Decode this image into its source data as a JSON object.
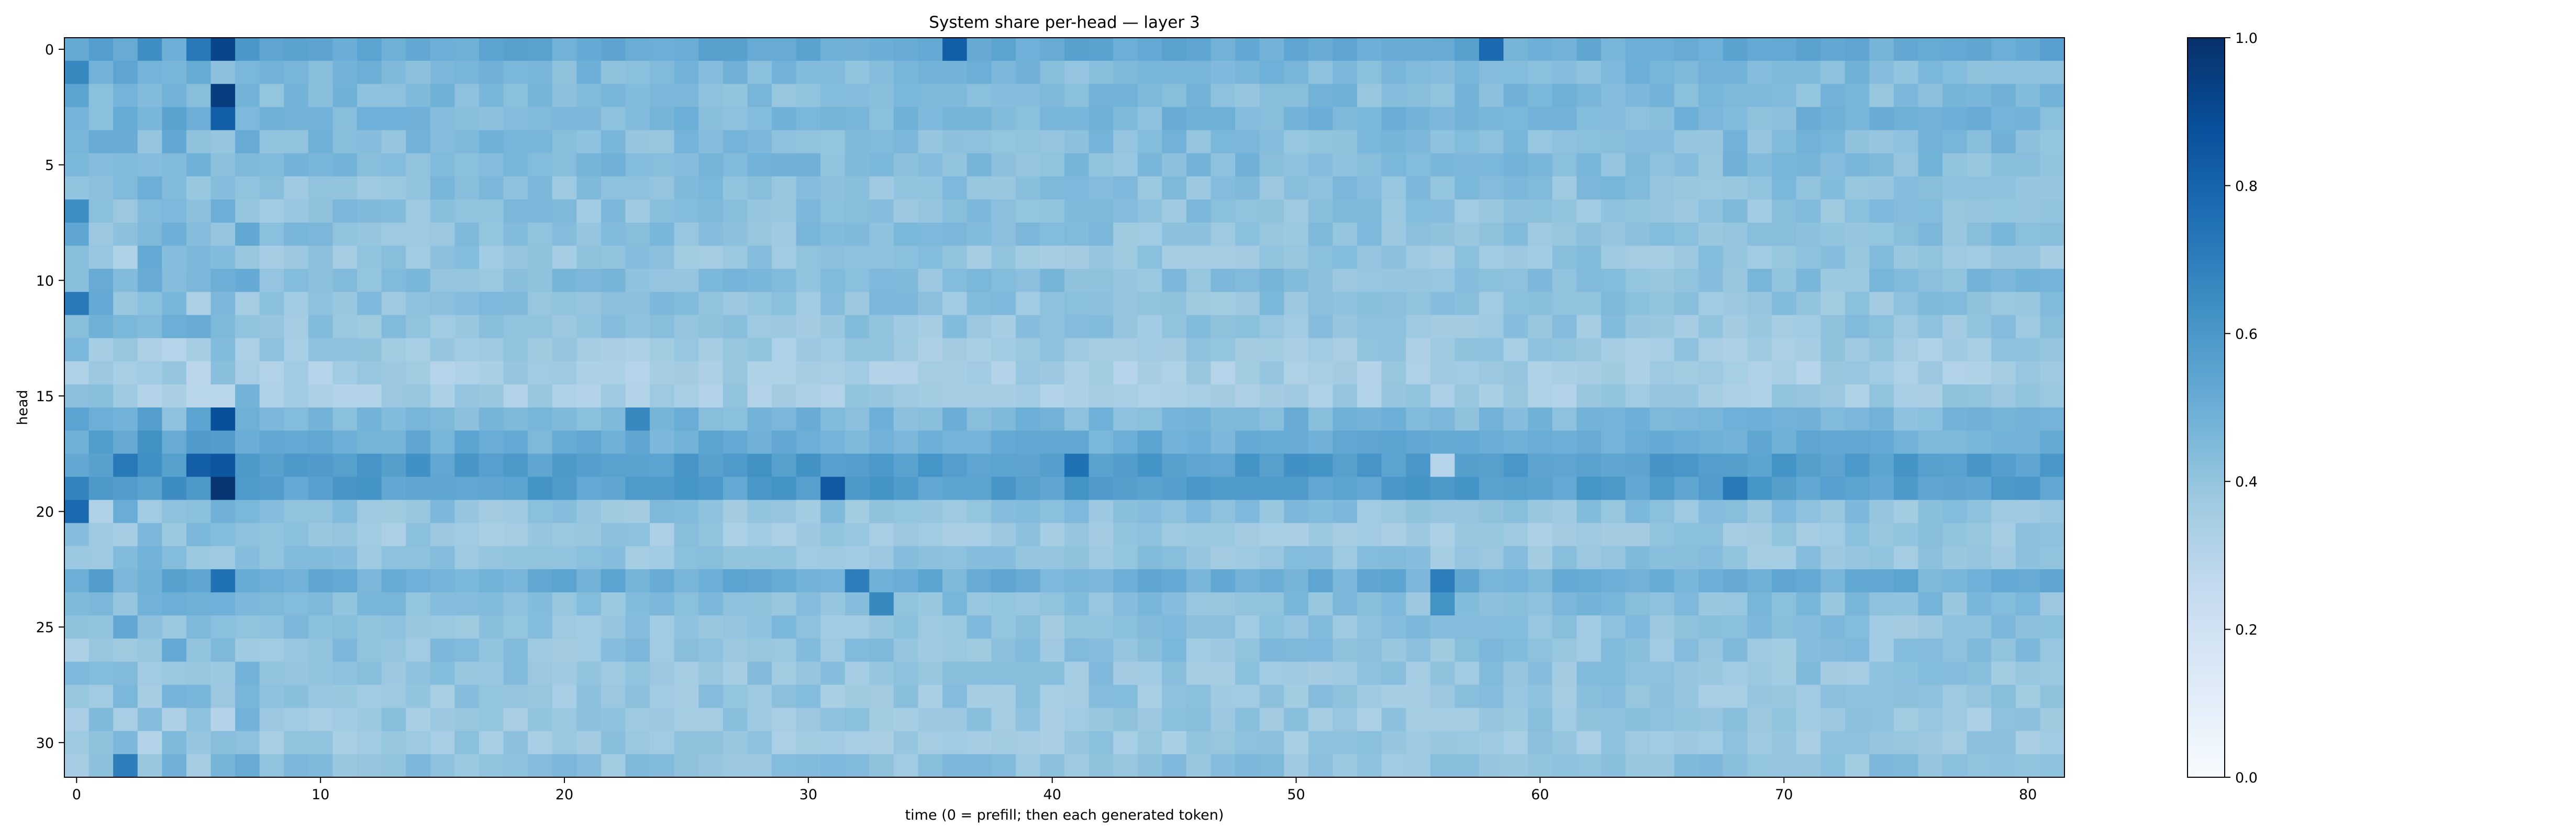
{
  "chart_data": {
    "type": "heatmap",
    "title": "System share per-head — layer 3",
    "xlabel": "time (0 = prefill; then each generated token)",
    "ylabel": "head",
    "x_range": [
      0,
      81
    ],
    "y_range": [
      0,
      31
    ],
    "x_ticks": [
      0,
      10,
      20,
      30,
      40,
      50,
      60,
      70,
      80
    ],
    "y_ticks": [
      0,
      5,
      10,
      15,
      20,
      25,
      30
    ],
    "colorbar": {
      "colormap": "Blues",
      "min": 0.0,
      "max": 1.0,
      "ticks": [
        0.0,
        0.2,
        0.4,
        0.6,
        0.8,
        1.0
      ],
      "tick_labels": [
        "0.0",
        "0.2",
        "0.4",
        "0.6",
        "0.8",
        "1.0"
      ]
    },
    "grid": false,
    "row_means": [
      0.52,
      0.45,
      0.44,
      0.46,
      0.44,
      0.44,
      0.42,
      0.41,
      0.42,
      0.4,
      0.43,
      0.41,
      0.4,
      0.37,
      0.35,
      0.36,
      0.46,
      0.5,
      0.58,
      0.57,
      0.41,
      0.38,
      0.4,
      0.5,
      0.43,
      0.41,
      0.41,
      0.4,
      0.39,
      0.38,
      0.38,
      0.41
    ],
    "cells": [
      {
        "head": 0,
        "t": 5,
        "v": 0.72
      },
      {
        "head": 0,
        "t": 6,
        "v": 0.92
      },
      {
        "head": 0,
        "t": 36,
        "v": 0.82
      },
      {
        "head": 0,
        "t": 58,
        "v": 0.78
      },
      {
        "head": 2,
        "t": 6,
        "v": 0.95
      },
      {
        "head": 3,
        "t": 6,
        "v": 0.82
      },
      {
        "head": 16,
        "t": 6,
        "v": 0.88
      },
      {
        "head": 18,
        "t": 2,
        "v": 0.72
      },
      {
        "head": 18,
        "t": 5,
        "v": 0.82
      },
      {
        "head": 18,
        "t": 6,
        "v": 0.85
      },
      {
        "head": 18,
        "t": 41,
        "v": 0.75
      },
      {
        "head": 19,
        "t": 6,
        "v": 0.98
      },
      {
        "head": 19,
        "t": 31,
        "v": 0.84
      },
      {
        "head": 19,
        "t": 68,
        "v": 0.72
      },
      {
        "head": 20,
        "t": 0,
        "v": 0.78
      },
      {
        "head": 11,
        "t": 0,
        "v": 0.72
      },
      {
        "head": 23,
        "t": 6,
        "v": 0.75
      },
      {
        "head": 23,
        "t": 32,
        "v": 0.7
      },
      {
        "head": 23,
        "t": 56,
        "v": 0.7
      },
      {
        "head": 24,
        "t": 33,
        "v": 0.66
      },
      {
        "head": 24,
        "t": 56,
        "v": 0.62
      },
      {
        "head": 31,
        "t": 2,
        "v": 0.7
      },
      {
        "head": 1,
        "t": 0,
        "v": 0.66
      },
      {
        "head": 7,
        "t": 0,
        "v": 0.64
      },
      {
        "head": 16,
        "t": 23,
        "v": 0.66
      },
      {
        "head": 18,
        "t": 56,
        "v": 0.3
      }
    ]
  }
}
